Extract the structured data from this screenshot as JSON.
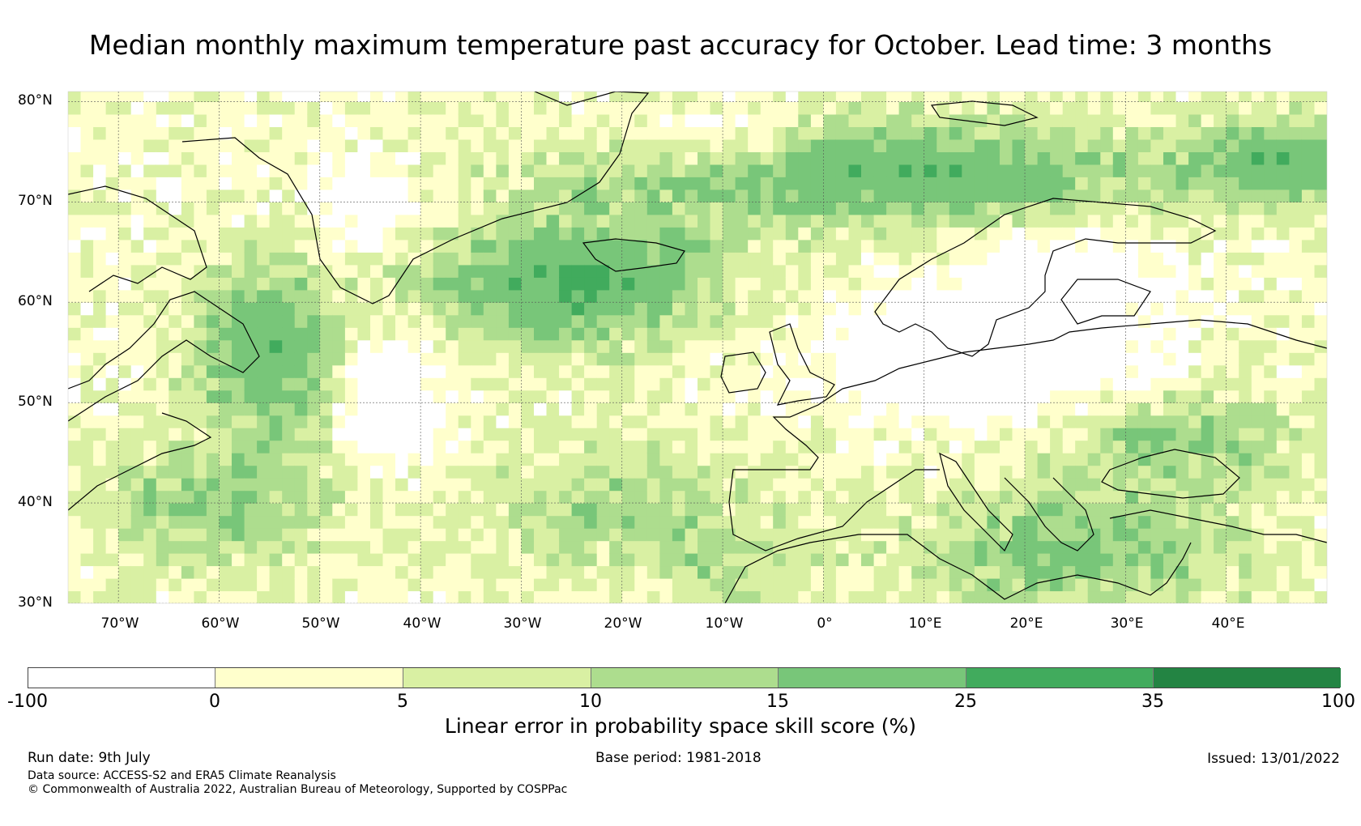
{
  "title": "Median monthly maximum temperature past accuracy for October. Lead time: 3 months",
  "map": {
    "lat_labels": [
      "80°N",
      "70°N",
      "60°N",
      "50°N",
      "40°N",
      "30°N"
    ],
    "lon_labels": [
      "70°W",
      "60°W",
      "50°W",
      "40°W",
      "30°W",
      "20°W",
      "10°W",
      "0°",
      "10°E",
      "20°E",
      "30°E",
      "40°E"
    ],
    "extent": {
      "lon_min": -75,
      "lon_max": 50,
      "lat_min": 30,
      "lat_max": 81
    }
  },
  "colorbar": {
    "label": "Linear error in probability space skill score (%)",
    "ticks": [
      "-100",
      "0",
      "5",
      "10",
      "15",
      "25",
      "35",
      "100"
    ],
    "colors": [
      "#ffffff",
      "#ffffcc",
      "#d9f0a3",
      "#addd8e",
      "#78c679",
      "#41ab5d",
      "#238443"
    ]
  },
  "footer": {
    "run_date": "Run date: 9th July",
    "base_period": "Base period: 1981-2018",
    "issued": "Issued: 13/01/2022",
    "data_source": "Data source: ACCESS-S2 and ERA5 Climate Reanalysis",
    "copyright": "© Commonwealth of Australia 2022, Australian Bureau of Meteorology, Supported by COSPPac"
  }
}
